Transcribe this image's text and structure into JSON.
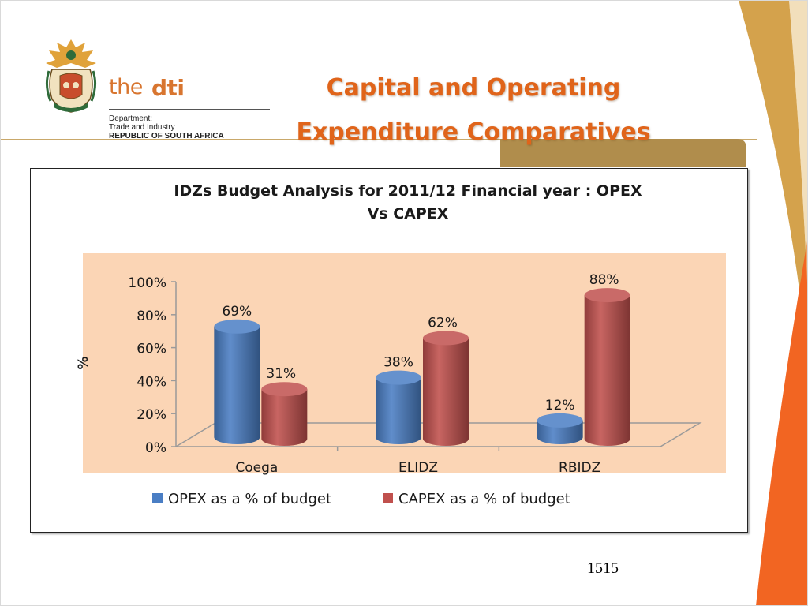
{
  "slide": {
    "title_line1": "Capital and Operating",
    "title_line2": "Expenditure Comparatives",
    "page_number": "1515"
  },
  "logo": {
    "brand_the": "the",
    "brand_dti": "dti",
    "dept_line1": "Department:",
    "dept_line2": "Trade and Industry",
    "dept_line3": "REPUBLIC OF SOUTH AFRICA"
  },
  "colors": {
    "title": "#e0641a",
    "opex": "#4a7ec4",
    "capex": "#c0504d",
    "plot_bg": "#fbd5b5",
    "accent_orange": "#f26522",
    "accent_gold": "#d4a24c"
  },
  "chart_data": {
    "type": "bar",
    "title": "IDZs Budget Analysis for 2011/12 Financial  year : OPEX Vs CAPEX",
    "title_line1": "IDZs Budget Analysis for 2011/12 Financial  year : OPEX",
    "title_line2": "Vs CAPEX",
    "categories": [
      "Coega",
      "ELIDZ",
      "RBIDZ"
    ],
    "series": [
      {
        "name": "OPEX as a % of budget",
        "values": [
          69,
          38,
          12
        ],
        "labels": [
          "69%",
          "38%",
          "12%"
        ]
      },
      {
        "name": "CAPEX as a % of budget",
        "values": [
          31,
          62,
          88
        ],
        "labels": [
          "31%",
          "62%",
          "88%"
        ]
      }
    ],
    "ylabel": "%",
    "xlabel": "",
    "ylim": [
      0,
      100
    ],
    "yticks": [
      "0%",
      "20%",
      "40%",
      "60%",
      "80%",
      "100%"
    ],
    "legend_position": "bottom",
    "style": "3d-cylinder",
    "grid": false
  }
}
